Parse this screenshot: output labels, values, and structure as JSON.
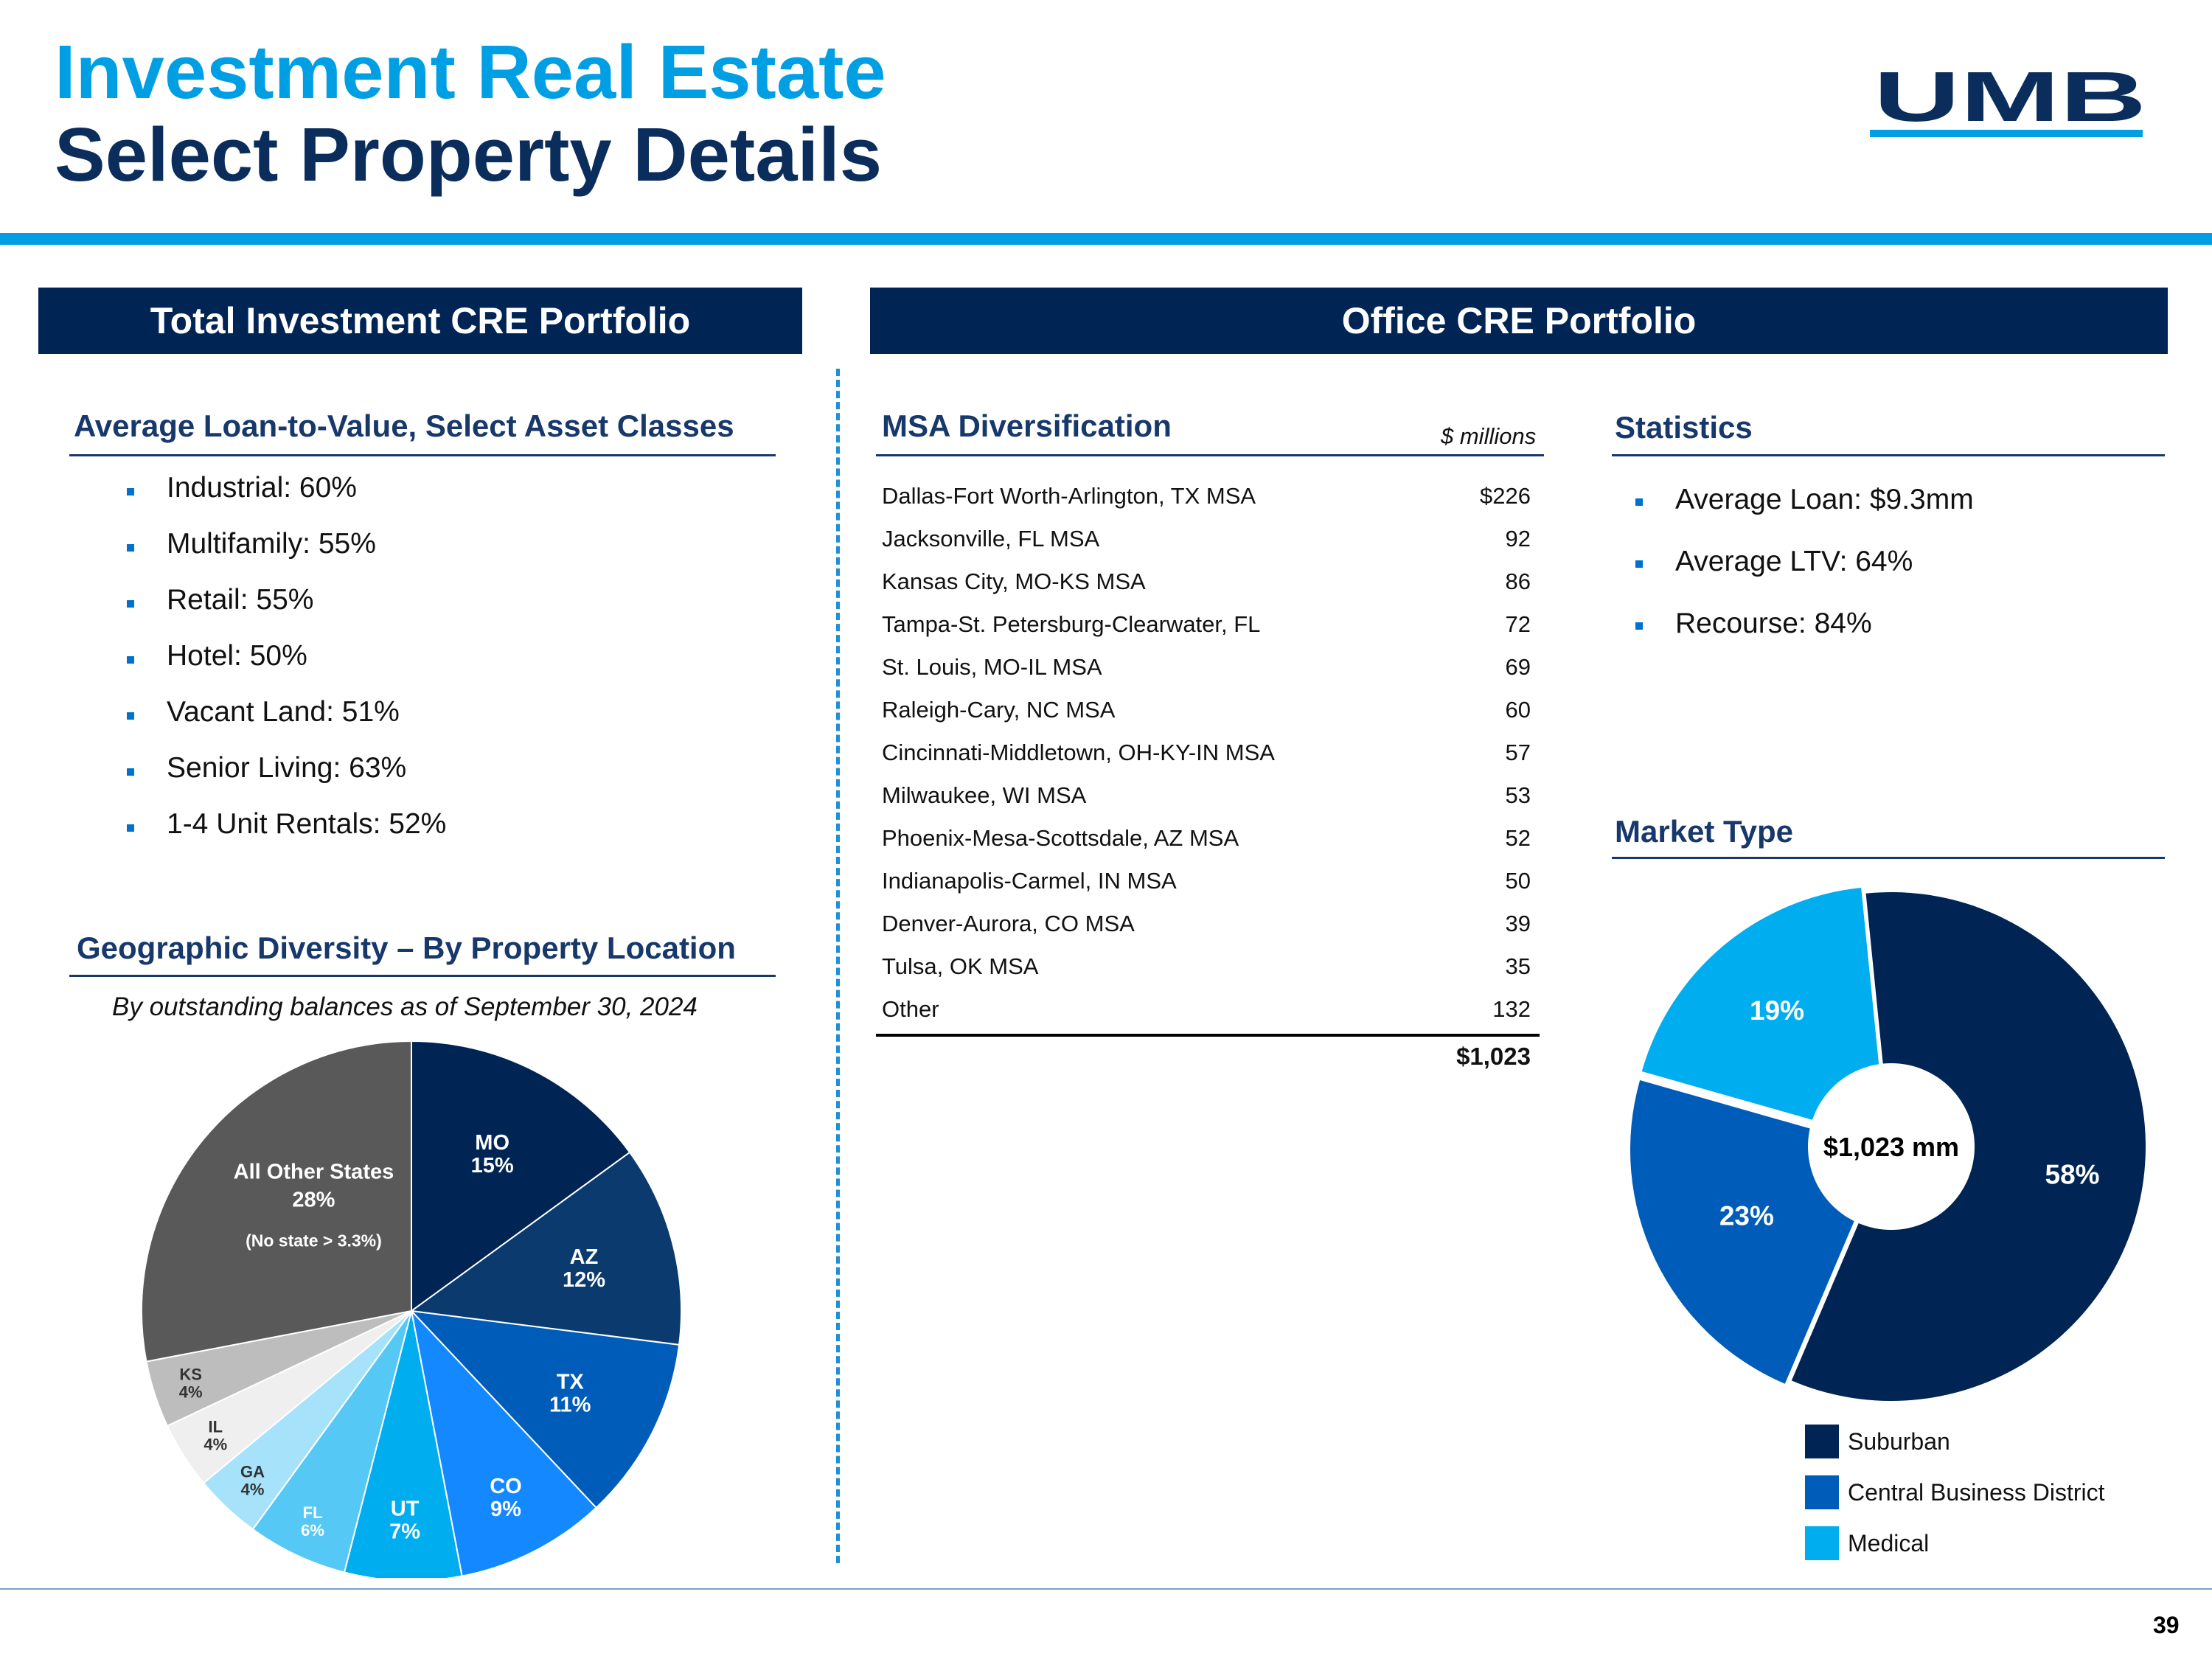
{
  "header": {
    "title_line1": "Investment Real Estate",
    "title_line2": "Select Property Details",
    "logo_text": "UMB",
    "accent_color": "#009fe3",
    "navy_color": "#002554"
  },
  "left_panel": {
    "header": "Total Investment CRE Portfolio",
    "ltv_title": "Average Loan-to-Value, Select Asset Classes",
    "ltv_items": [
      "Industrial: 60%",
      "Multifamily: 55%",
      "Retail: 55%",
      "Hotel: 50%",
      "Vacant Land: 51%",
      "Senior Living: 63%",
      "1-4 Unit Rentals: 52%"
    ],
    "geo_title": "Geographic Diversity – By Property Location",
    "geo_caption": "By outstanding balances as of September 30, 2024"
  },
  "right_panel": {
    "header": "Office CRE Portfolio",
    "msa_title": "MSA Diversification",
    "msa_units": "$ millions",
    "msa_rows": [
      {
        "name": "Dallas-Fort Worth-Arlington, TX MSA",
        "value": "$226"
      },
      {
        "name": "Jacksonville, FL MSA",
        "value": "92"
      },
      {
        "name": "Kansas City, MO-KS MSA",
        "value": "86"
      },
      {
        "name": "Tampa-St. Petersburg-Clearwater, FL",
        "value": "72"
      },
      {
        "name": "St. Louis, MO-IL MSA",
        "value": "69"
      },
      {
        "name": "Raleigh-Cary, NC MSA",
        "value": "60"
      },
      {
        "name": "Cincinnati-Middletown, OH-KY-IN MSA",
        "value": "57"
      },
      {
        "name": "Milwaukee, WI MSA",
        "value": "53"
      },
      {
        "name": "Phoenix-Mesa-Scottsdale, AZ MSA",
        "value": "52"
      },
      {
        "name": "Indianapolis-Carmel, IN MSA",
        "value": "50"
      },
      {
        "name": "Denver-Aurora, CO MSA",
        "value": "39"
      },
      {
        "name": "Tulsa, OK MSA",
        "value": "35"
      },
      {
        "name": "Other",
        "value": "132"
      }
    ],
    "msa_total": "$1,023",
    "stats_title": "Statistics",
    "stats_items": [
      "Average Loan: $9.3mm",
      "Average LTV: 64%",
      "Recourse: 84%"
    ],
    "market_title": "Market Type"
  },
  "page_number": "39",
  "chart_data": [
    {
      "type": "pie",
      "categories": [
        "MO",
        "AZ",
        "TX",
        "CO",
        "UT",
        "FL",
        "GA",
        "IL",
        "KS",
        "All Other States"
      ],
      "values": [
        15,
        12,
        11,
        9,
        7,
        6,
        4,
        4,
        4,
        28
      ],
      "labels": [
        "15%",
        "12%",
        "11%",
        "9%",
        "7%",
        "6%",
        "4%",
        "4%",
        "4%",
        "28%"
      ],
      "annotation": "(No state > 3.3%)",
      "colors": [
        "#002554",
        "#0b3a6e",
        "#005cb9",
        "#1488ff",
        "#00aeef",
        "#55c8f5",
        "#a6e3fb",
        "#efefef",
        "#bdbdbd",
        "#595959"
      ]
    },
    {
      "type": "pie",
      "categories": [
        "Suburban",
        "Central Business District",
        "Medical"
      ],
      "values": [
        58,
        23,
        19
      ],
      "labels": [
        "58%",
        "23%",
        "19%"
      ],
      "center_label": "$1,023 mm",
      "colors": [
        "#002554",
        "#005cb9",
        "#00aeef"
      ]
    }
  ]
}
